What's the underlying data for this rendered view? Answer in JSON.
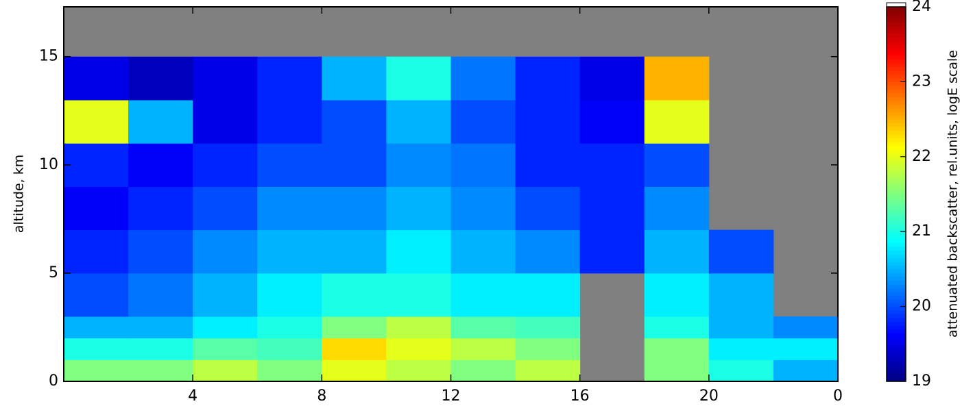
{
  "chart_data": {
    "type": "heatmap",
    "y_label": "altitude, km",
    "colorbar_label": "attenuated backscatter, rel.units, logE scale",
    "colormap": "jet",
    "missing_color": "#808080",
    "x_edges": [
      0,
      2,
      4,
      6,
      8,
      10,
      12,
      14,
      16,
      18,
      20,
      22,
      24
    ],
    "y_edges": [
      0,
      1,
      2,
      3,
      5,
      7,
      9,
      11,
      13,
      15,
      17.3
    ],
    "z": [
      [
        21.5,
        21.5,
        21.8,
        21.5,
        22,
        21.8,
        21.5,
        21.8,
        null,
        21.5,
        21,
        20.5
      ],
      [
        21,
        21,
        21.3,
        21.2,
        22.3,
        22,
        21.8,
        21.5,
        null,
        21.5,
        20.8,
        20.8
      ],
      [
        20.5,
        20.5,
        20.8,
        21,
        21.5,
        21.8,
        21.3,
        21.2,
        null,
        21,
        20.5,
        20.3
      ],
      [
        20,
        20.2,
        20.5,
        20.8,
        21,
        21,
        20.8,
        20.8,
        null,
        20.8,
        20.5,
        null
      ],
      [
        19.8,
        20,
        20.3,
        20.5,
        20.5,
        20.8,
        20.5,
        20.3,
        19.8,
        20.5,
        20,
        null
      ],
      [
        19.6,
        19.8,
        20,
        20.3,
        20.3,
        20.5,
        20.3,
        20,
        19.8,
        20.3,
        null,
        null
      ],
      [
        19.8,
        19.6,
        19.8,
        20,
        20,
        20.3,
        20.2,
        19.8,
        19.8,
        20,
        null,
        null
      ],
      [
        22,
        20.5,
        19.5,
        19.8,
        20,
        20.5,
        20,
        19.8,
        19.6,
        22,
        null,
        null
      ],
      [
        19.5,
        19.3,
        19.5,
        19.8,
        20.5,
        21,
        20.2,
        19.8,
        19.5,
        22.5,
        null,
        null
      ],
      [
        null,
        null,
        null,
        null,
        null,
        null,
        null,
        null,
        null,
        null,
        null,
        null
      ]
    ],
    "xlim": [
      0,
      24
    ],
    "xticks": [
      4,
      8,
      12,
      16,
      20,
      {
        "value": 24,
        "label": "0"
      }
    ],
    "ylim": [
      0,
      17.3
    ],
    "yticks": [
      0,
      5,
      10,
      15
    ],
    "clim": [
      19,
      24
    ],
    "cticks": [
      19,
      20,
      21,
      22,
      23,
      24
    ]
  }
}
